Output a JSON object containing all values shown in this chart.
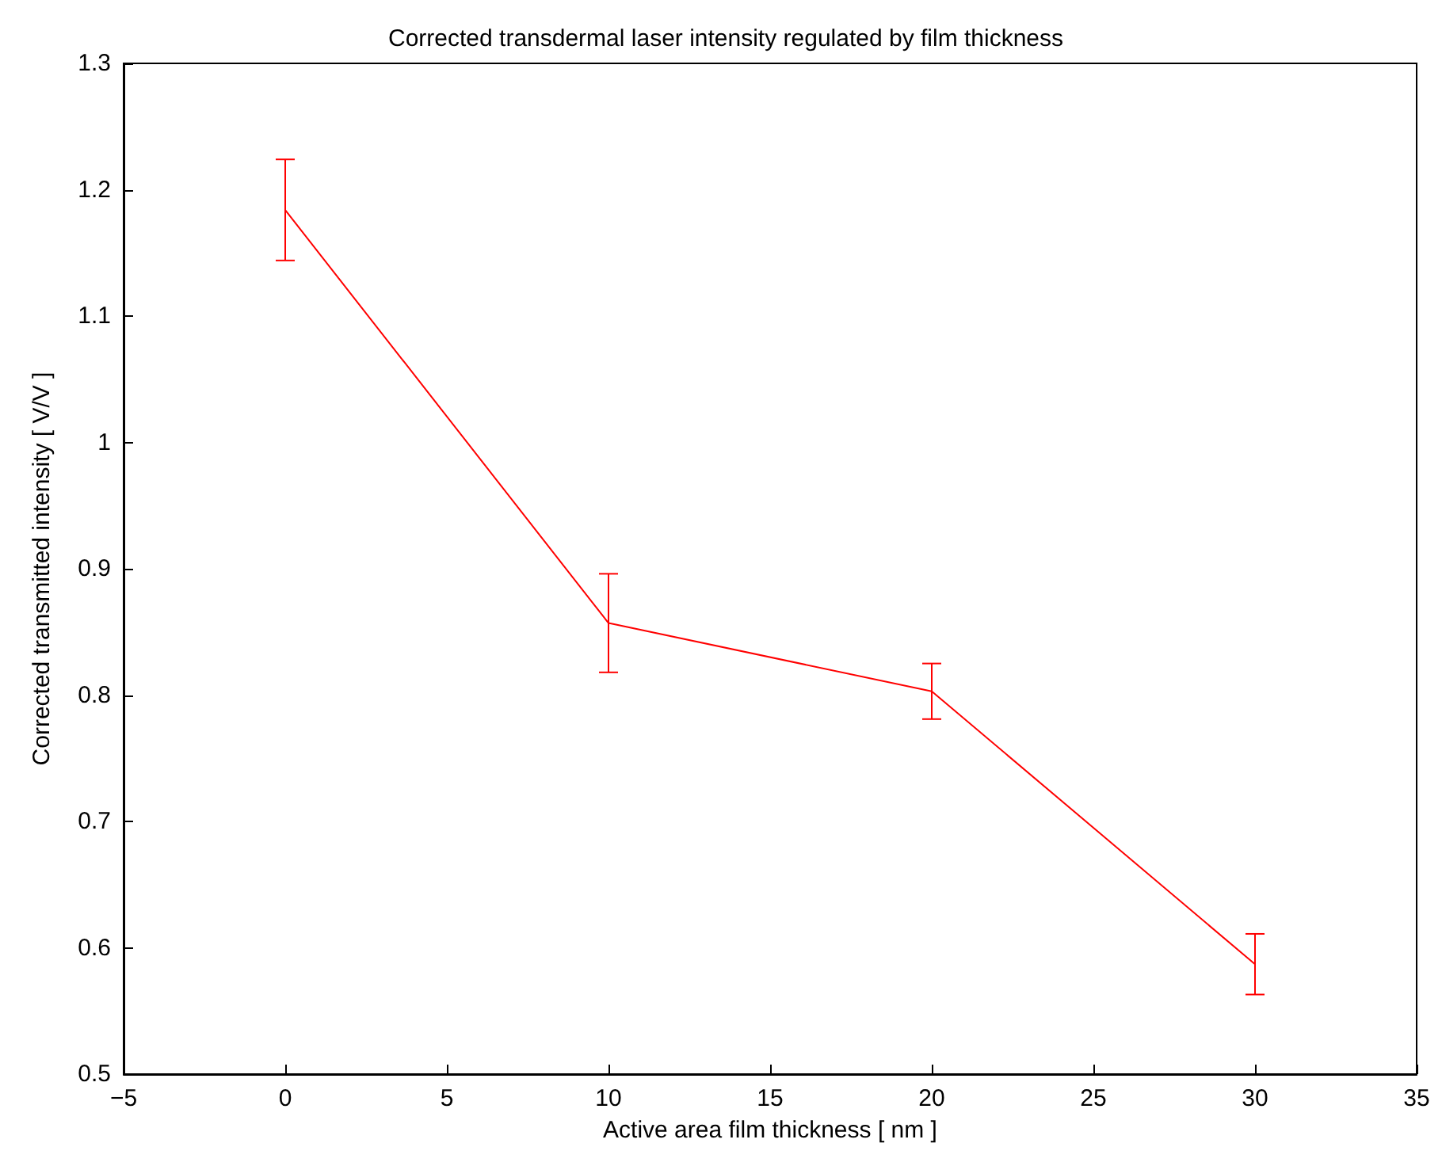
{
  "chart_data": {
    "type": "line",
    "title": "Corrected transdermal laser intensity regulated by film thickness",
    "xlabel": "Active area film thickness [ nm ]",
    "ylabel": "Corrected transmitted intensity [ V/V ]",
    "x": [
      0,
      10,
      20,
      30
    ],
    "series": [
      {
        "color": "#ff0000",
        "values": [
          1.184,
          0.857,
          0.803,
          0.587
        ],
        "errors": [
          0.04,
          0.039,
          0.022,
          0.024
        ]
      }
    ],
    "xlim": [
      -5,
      35
    ],
    "xticks": [
      {
        "value": -5,
        "label": "−5"
      },
      0,
      5,
      10,
      15,
      20,
      25,
      30,
      35
    ],
    "ylim": [
      0.5,
      1.3
    ],
    "yticks": [
      0.5,
      0.6,
      0.7,
      0.8,
      0.9,
      1,
      1.1,
      1.2,
      1.3
    ],
    "grid": false,
    "marker": "none",
    "line_style": "solid"
  }
}
